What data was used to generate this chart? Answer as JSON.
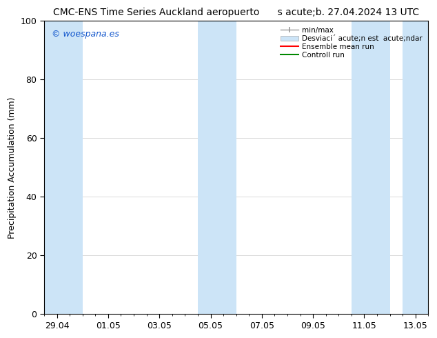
{
  "title_left": "CMC-ENS Time Series Auckland aeropuerto",
  "title_right": "s acute;b. 27.04.2024 13 UTC",
  "ylabel": "Precipitation Accumulation (mm)",
  "ylim": [
    0,
    100
  ],
  "yticks": [
    0,
    20,
    40,
    60,
    80,
    100
  ],
  "xtick_labels": [
    "29.04",
    "01.05",
    "03.05",
    "05.05",
    "07.05",
    "09.05",
    "11.05",
    "13.05"
  ],
  "xtick_positions": [
    0,
    2,
    4,
    6,
    8,
    10,
    12,
    14
  ],
  "watermark": "© woespana.es",
  "watermark_color": "#1155cc",
  "bg_color": "#ffffff",
  "plot_bg_color": "#ffffff",
  "shaded_bands": [
    {
      "xmin": -0.5,
      "xmax": 1.0,
      "color": "#cce4f7"
    },
    {
      "xmin": 5.5,
      "xmax": 7.0,
      "color": "#cce4f7"
    },
    {
      "xmin": 11.5,
      "xmax": 13.0,
      "color": "#cce4f7"
    },
    {
      "xmin": 13.5,
      "xmax": 14.5,
      "color": "#cce4f7"
    }
  ],
  "xlim": [
    -0.5,
    14.5
  ],
  "legend_minmax_color": "#999999",
  "legend_std_color": "#cce4f7",
  "legend_ensemble_color": "#ff0000",
  "legend_control_color": "#008800",
  "title_fontsize": 10,
  "tick_fontsize": 9,
  "label_fontsize": 9
}
